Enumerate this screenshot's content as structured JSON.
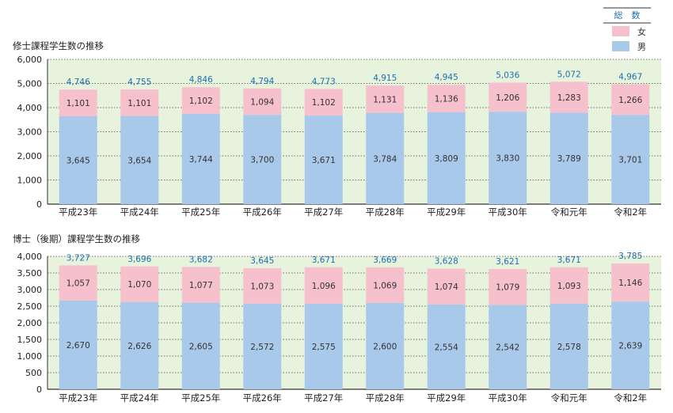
{
  "legend": {
    "title": "総　数",
    "items": [
      {
        "label": "女",
        "color": "#f6c1cc"
      },
      {
        "label": "男",
        "color": "#a9c9ea"
      }
    ]
  },
  "colors": {
    "plot_bg": "#e8f3dd",
    "female": "#f6c1cc",
    "male": "#a9c9ea",
    "total_text": "#1a6fb0",
    "grid": "#444444"
  },
  "chart_data": [
    {
      "type": "bar",
      "stacked": true,
      "title": "修士課程学生数の推移",
      "categories": [
        "平成23年",
        "平成24年",
        "平成25年",
        "平成26年",
        "平成27年",
        "平成28年",
        "平成29年",
        "平成30年",
        "令和元年",
        "令和2年"
      ],
      "series": [
        {
          "name": "男",
          "values": [
            3645,
            3654,
            3744,
            3700,
            3671,
            3784,
            3809,
            3830,
            3789,
            3701
          ]
        },
        {
          "name": "女",
          "values": [
            1101,
            1101,
            1102,
            1094,
            1102,
            1131,
            1136,
            1206,
            1283,
            1266
          ]
        }
      ],
      "totals": [
        4746,
        4755,
        4846,
        4794,
        4773,
        4915,
        4945,
        5036,
        5072,
        4967
      ],
      "ylim": [
        0,
        6000
      ],
      "yticks": [
        0,
        1000,
        2000,
        3000,
        4000,
        5000,
        6000
      ],
      "ytick_labels": [
        "0",
        "1,000",
        "2,000",
        "3,000",
        "4,000",
        "5,000",
        "6,000"
      ],
      "grid": "dotted horizontal",
      "xlabel": "",
      "ylabel": ""
    },
    {
      "type": "bar",
      "stacked": true,
      "title": "博士（後期）課程学生数の推移",
      "categories": [
        "平成23年",
        "平成24年",
        "平成25年",
        "平成26年",
        "平成27年",
        "平成28年",
        "平成29年",
        "平成30年",
        "令和元年",
        "令和2年"
      ],
      "series": [
        {
          "name": "男",
          "values": [
            2670,
            2626,
            2605,
            2572,
            2575,
            2600,
            2554,
            2542,
            2578,
            2639
          ]
        },
        {
          "name": "女",
          "values": [
            1057,
            1070,
            1077,
            1073,
            1096,
            1069,
            1074,
            1079,
            1093,
            1146
          ]
        }
      ],
      "totals": [
        3727,
        3696,
        3682,
        3645,
        3671,
        3669,
        3628,
        3621,
        3671,
        3785
      ],
      "ylim": [
        0,
        4000
      ],
      "yticks": [
        0,
        500,
        1000,
        1500,
        2000,
        2500,
        3000,
        3500,
        4000
      ],
      "ytick_labels": [
        "0",
        "500",
        "1,000",
        "1,500",
        "2,000",
        "2,500",
        "3,000",
        "3,500",
        "4,000"
      ],
      "grid": "dotted horizontal",
      "xlabel": "",
      "ylabel": ""
    }
  ]
}
